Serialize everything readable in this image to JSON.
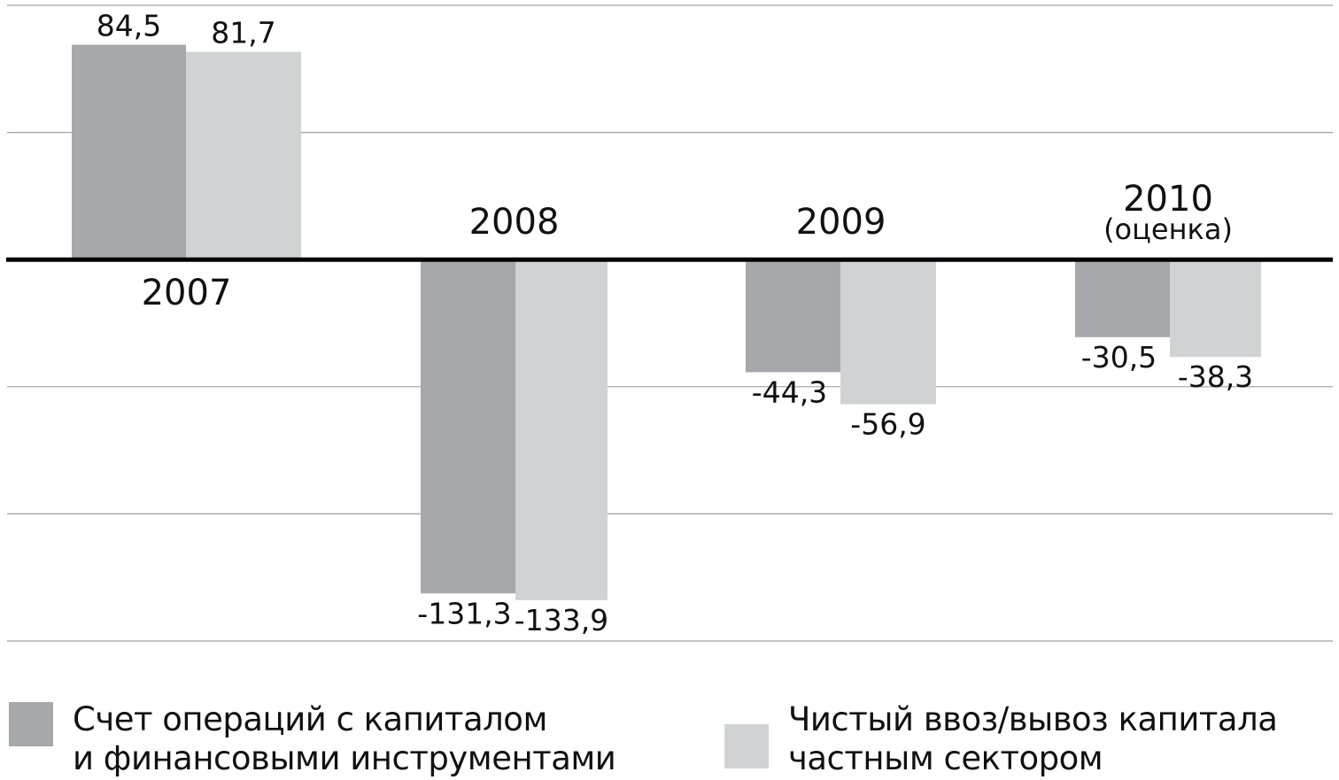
{
  "chart_data": {
    "type": "bar",
    "categories": [
      "2007",
      "2008",
      "2009",
      "2010"
    ],
    "category_notes": [
      "",
      "",
      "",
      "(оценка)"
    ],
    "series": [
      {
        "name": "Счет операций с капиталом и финансовыми инструментами",
        "values": [
          84.5,
          -131.3,
          -44.3,
          -30.5
        ],
        "labels": [
          "84,5",
          "-131,3",
          "-44,3",
          "-30,5"
        ],
        "color": "#a7a8ab"
      },
      {
        "name": "Чистый ввоз/вывоз капитала частным сектором",
        "values": [
          81.7,
          -133.9,
          -56.9,
          -38.3
        ],
        "labels": [
          "81,7",
          "-133,9",
          "-56,9",
          "-38,3"
        ],
        "color": "#d1d2d4"
      }
    ],
    "ylim": [
      -150,
      100
    ],
    "gridlines": [
      100,
      50,
      -50,
      -100,
      -150
    ],
    "grid": true,
    "legend_position": "bottom",
    "title": "",
    "xlabel": "",
    "ylabel": ""
  },
  "legend": {
    "items": [
      {
        "lines": [
          "Счет операций с капиталом",
          "и финансовыми инструментами"
        ]
      },
      {
        "lines": [
          "Чистый ввоз/вывоз капитала",
          "частным сектором"
        ]
      }
    ]
  }
}
